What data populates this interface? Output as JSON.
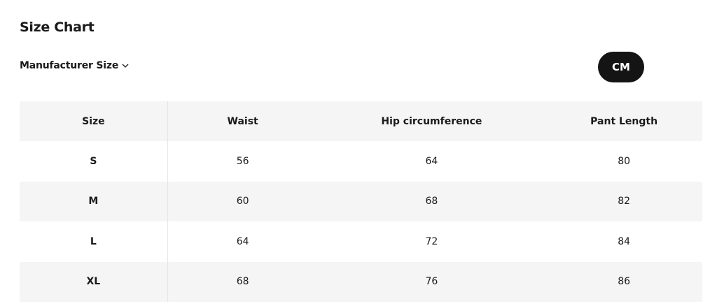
{
  "title": "Size Chart",
  "size_selector": {
    "label": "Manufacturer Size",
    "icon": "chevron-down-icon"
  },
  "unit_button": "CM",
  "table": {
    "headers": [
      "Size",
      "Waist",
      "Hip circumference",
      "Pant Length"
    ],
    "rows": [
      [
        "S",
        "56",
        "64",
        "80"
      ],
      [
        "M",
        "60",
        "68",
        "82"
      ],
      [
        "L",
        "64",
        "72",
        "84"
      ],
      [
        "XL",
        "68",
        "76",
        "86"
      ]
    ]
  }
}
